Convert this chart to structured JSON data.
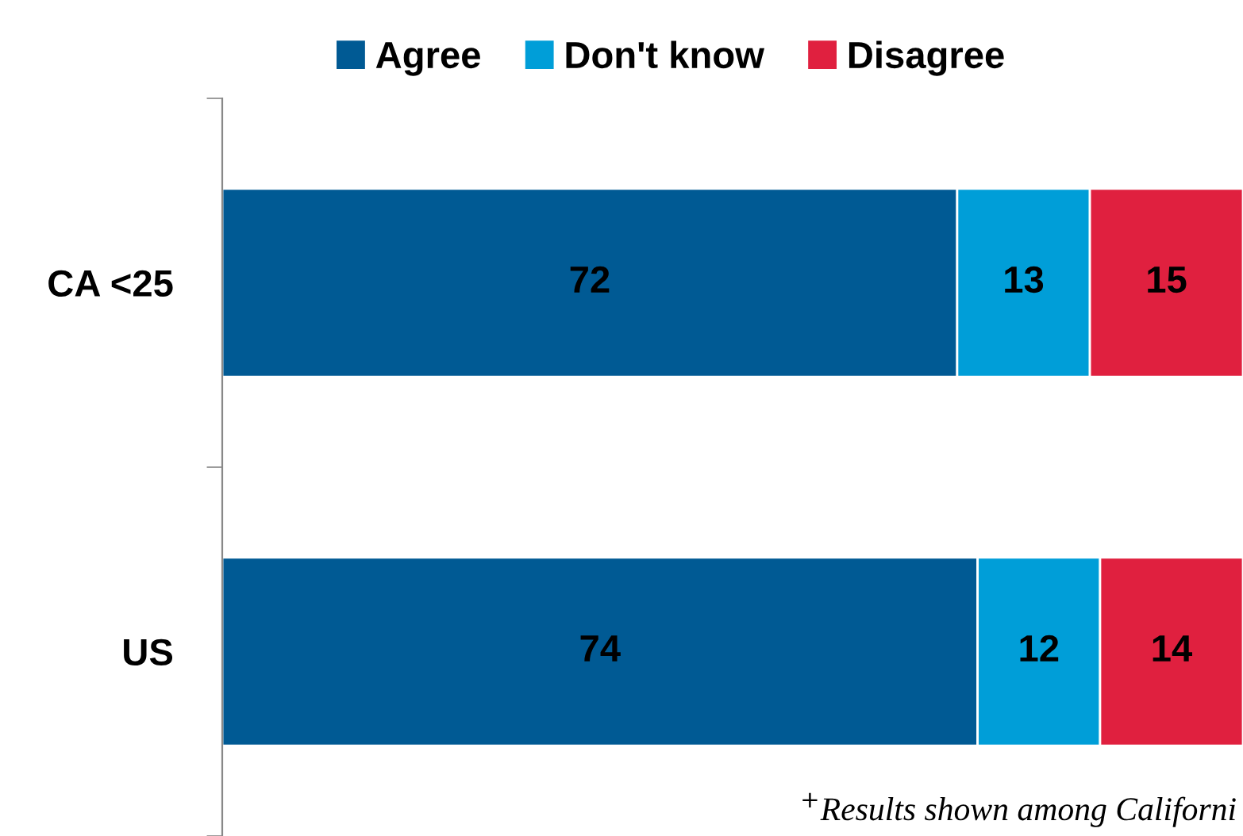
{
  "chart_data": {
    "type": "bar",
    "orientation": "horizontal",
    "stacked": true,
    "categories": [
      "CA <25",
      "US"
    ],
    "series": [
      {
        "name": "Agree",
        "color": "#005a94",
        "values": [
          72,
          74
        ]
      },
      {
        "name": "Don't know",
        "color": "#009ed8",
        "values": [
          13,
          12
        ]
      },
      {
        "name": "Disagree",
        "color": "#e0203f",
        "values": [
          15,
          14
        ]
      }
    ],
    "xlim": [
      0,
      100
    ],
    "tick_labels": "y",
    "data_labels": true,
    "legend": "top",
    "grid": false,
    "annotations": [
      "$^{+}$Results shown among Californi"
    ]
  }
}
